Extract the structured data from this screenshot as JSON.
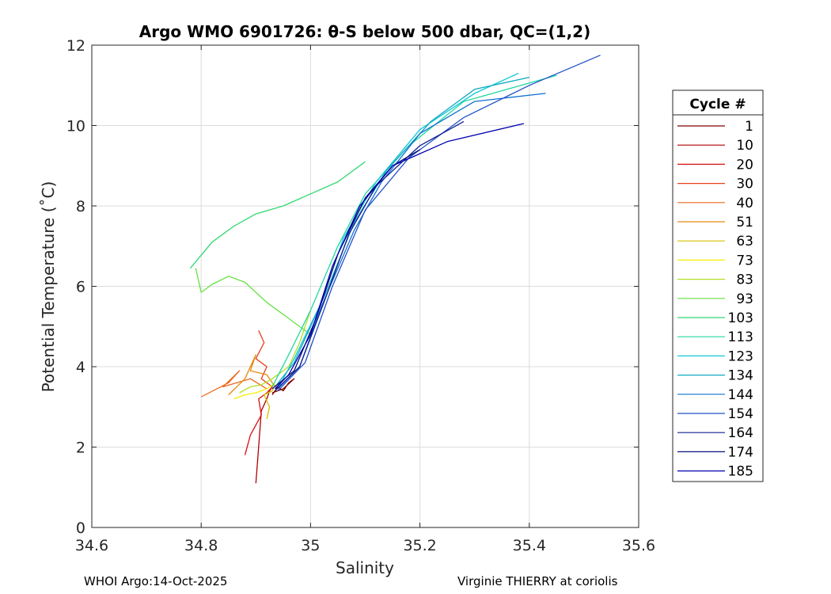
{
  "chart_data": {
    "type": "line",
    "title": "Argo WMO 6901726: θ-S below 500 dbar,  QC=(1,2)",
    "xlabel": "Salinity",
    "ylabel": "Potential Temperature (˚C)",
    "xlim": [
      34.6,
      35.6
    ],
    "ylim": [
      0,
      12
    ],
    "xticks": [
      34.6,
      34.8,
      35.0,
      35.2,
      35.4,
      35.6
    ],
    "xtick_labels": [
      "34.6",
      "34.8",
      "35",
      "35.2",
      "35.4",
      "35.6"
    ],
    "yticks": [
      0,
      2,
      4,
      6,
      8,
      10,
      12
    ],
    "ytick_labels": [
      "0",
      "2",
      "4",
      "6",
      "8",
      "10",
      "12"
    ],
    "grid": true,
    "legend": {
      "title": "Cycle #",
      "placement": "outside-right",
      "entries": [
        "1",
        "10",
        "20",
        "30",
        "40",
        "51",
        "63",
        "73",
        "83",
        "93",
        "103",
        "113",
        "123",
        "134",
        "144",
        "154",
        "164",
        "174",
        "185"
      ],
      "colors": [
        "#800000",
        "#b00000",
        "#d81010",
        "#e8401a",
        "#ec6a1c",
        "#e88a10",
        "#d6c000",
        "#f4f000",
        "#b0e020",
        "#66e040",
        "#30d870",
        "#20d8a0",
        "#10c8d8",
        "#10a8c0",
        "#1070d0",
        "#2050c8",
        "#102090",
        "#08107a",
        "#0000b0"
      ]
    },
    "series": [
      {
        "name": "1",
        "color": "#800000",
        "x": [
          34.93,
          34.94,
          34.95,
          34.96,
          34.97,
          34.95,
          34.93
        ],
        "y": [
          3.3,
          3.5,
          3.4,
          3.6,
          3.7,
          3.45,
          3.35
        ]
      },
      {
        "name": "10",
        "color": "#b00000",
        "x": [
          34.9,
          34.905,
          34.91,
          34.92,
          34.925,
          34.93
        ],
        "y": [
          1.1,
          2.0,
          2.9,
          3.2,
          3.4,
          3.5
        ]
      },
      {
        "name": "20",
        "color": "#d81010",
        "x": [
          34.88,
          34.89,
          34.91,
          34.905,
          34.92,
          34.93
        ],
        "y": [
          1.8,
          2.3,
          2.8,
          3.2,
          3.35,
          3.5
        ]
      },
      {
        "name": "30",
        "color": "#e8401a",
        "x": [
          34.905,
          34.915,
          34.9,
          34.92,
          34.91,
          34.93
        ],
        "y": [
          4.9,
          4.6,
          4.2,
          4.0,
          3.7,
          3.5
        ]
      },
      {
        "name": "40",
        "color": "#ec6a1c",
        "x": [
          34.8,
          34.85,
          34.87,
          34.84,
          34.89,
          34.92
        ],
        "y": [
          3.25,
          3.6,
          3.9,
          3.5,
          3.7,
          3.45
        ]
      },
      {
        "name": "51",
        "color": "#e88a10",
        "x": [
          34.85,
          34.88,
          34.9,
          34.89,
          34.92,
          34.935
        ],
        "y": [
          3.3,
          3.7,
          4.3,
          3.9,
          3.8,
          3.5
        ]
      },
      {
        "name": "63",
        "color": "#d6c000",
        "x": [
          34.92,
          34.925,
          34.915,
          34.93,
          34.935
        ],
        "y": [
          2.7,
          3.0,
          3.3,
          3.4,
          3.55
        ]
      },
      {
        "name": "73",
        "color": "#f4f000",
        "x": [
          34.86,
          34.88,
          34.9,
          34.92,
          34.935
        ],
        "y": [
          3.2,
          3.3,
          3.35,
          3.45,
          3.6
        ]
      },
      {
        "name": "83",
        "color": "#b0e020",
        "x": [
          34.87,
          34.89,
          34.91,
          34.93,
          34.96,
          34.98,
          35.0
        ],
        "y": [
          3.35,
          3.5,
          3.55,
          3.7,
          4.0,
          4.6,
          5.4
        ]
      },
      {
        "name": "93",
        "color": "#66e040",
        "x": [
          34.79,
          34.8,
          34.82,
          34.85,
          34.88,
          34.92,
          34.96,
          35.0
        ],
        "y": [
          6.45,
          5.85,
          6.05,
          6.25,
          6.1,
          5.6,
          5.2,
          4.8
        ]
      },
      {
        "name": "103",
        "color": "#30d870",
        "x": [
          34.78,
          34.82,
          34.86,
          34.9,
          34.95,
          35.0,
          35.05,
          35.1
        ],
        "y": [
          6.45,
          7.1,
          7.5,
          7.8,
          8.0,
          8.3,
          8.6,
          9.1
        ]
      },
      {
        "name": "113",
        "color": "#20d8a0",
        "x": [
          34.93,
          34.96,
          35.0,
          35.05,
          35.1,
          35.18,
          35.28,
          35.45
        ],
        "y": [
          3.5,
          4.3,
          5.4,
          7.0,
          8.3,
          9.5,
          10.6,
          11.25
        ]
      },
      {
        "name": "123",
        "color": "#10c8d8",
        "x": [
          34.94,
          34.97,
          35.02,
          35.06,
          35.12,
          35.2,
          35.3,
          35.38
        ],
        "y": [
          3.45,
          4.2,
          5.6,
          7.2,
          8.6,
          9.9,
          10.8,
          11.3
        ]
      },
      {
        "name": "134",
        "color": "#10a8c0",
        "x": [
          34.935,
          34.97,
          35.03,
          35.08,
          35.14,
          35.22,
          35.3,
          35.4
        ],
        "y": [
          3.5,
          4.1,
          5.9,
          7.6,
          8.9,
          10.1,
          10.9,
          11.2
        ]
      },
      {
        "name": "144",
        "color": "#1070d0",
        "x": [
          34.94,
          34.98,
          35.02,
          35.08,
          35.13,
          35.2,
          35.3,
          35.43
        ],
        "y": [
          3.45,
          4.0,
          5.5,
          7.4,
          8.6,
          9.8,
          10.6,
          10.8
        ]
      },
      {
        "name": "154",
        "color": "#2050c8",
        "x": [
          34.94,
          34.99,
          35.04,
          35.1,
          35.18,
          35.28,
          35.4,
          35.53
        ],
        "y": [
          3.4,
          4.1,
          6.0,
          7.9,
          9.2,
          10.2,
          11.0,
          11.75
        ]
      },
      {
        "name": "164",
        "color": "#102090",
        "x": [
          34.935,
          34.98,
          35.03,
          35.07,
          35.12,
          35.2,
          35.28
        ],
        "y": [
          3.4,
          4.0,
          5.8,
          7.3,
          8.5,
          9.5,
          10.1
        ]
      },
      {
        "name": "174",
        "color": "#08107a",
        "x": [
          34.93,
          34.97,
          35.01,
          35.05,
          35.1,
          35.15,
          35.2
        ],
        "y": [
          3.45,
          3.9,
          5.2,
          6.8,
          8.2,
          9.0,
          9.4
        ]
      },
      {
        "name": "185",
        "color": "#0000b0",
        "x": [
          34.935,
          34.96,
          35.0,
          35.04,
          35.09,
          35.15,
          35.25,
          35.39
        ],
        "y": [
          3.45,
          3.8,
          4.8,
          6.5,
          8.0,
          9.0,
          9.6,
          10.05
        ]
      }
    ]
  },
  "footer": {
    "left": "WHOI Argo:14-Oct-2025",
    "right": "Virginie THIERRY at coriolis"
  }
}
